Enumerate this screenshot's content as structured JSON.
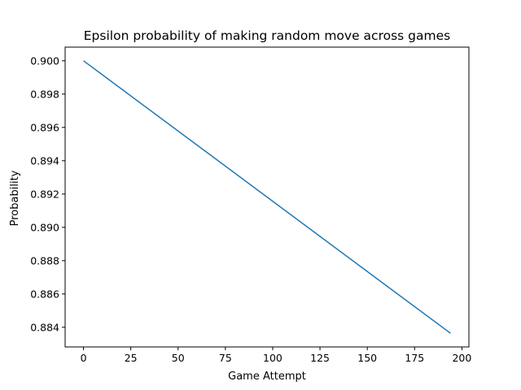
{
  "chart_data": {
    "type": "line",
    "title": "Epsilon probability of making random move across games",
    "xlabel": "Game Attempt",
    "ylabel": "Probability",
    "xlim": [
      -9.7,
      203.7
    ],
    "ylim": [
      0.88282,
      0.90082
    ],
    "xticks": [
      0,
      25,
      50,
      75,
      100,
      125,
      150,
      175,
      200
    ],
    "yticks": [
      0.884,
      0.886,
      0.888,
      0.89,
      0.892,
      0.894,
      0.896,
      0.898,
      0.9
    ],
    "ytick_labels": [
      "0.884",
      "0.886",
      "0.888",
      "0.890",
      "0.892",
      "0.894",
      "0.896",
      "0.898",
      "0.900"
    ],
    "grid": false,
    "series": [
      {
        "x": [
          0,
          194
        ],
        "y": [
          0.9,
          0.88364
        ],
        "color": "#1f77b4"
      }
    ]
  }
}
